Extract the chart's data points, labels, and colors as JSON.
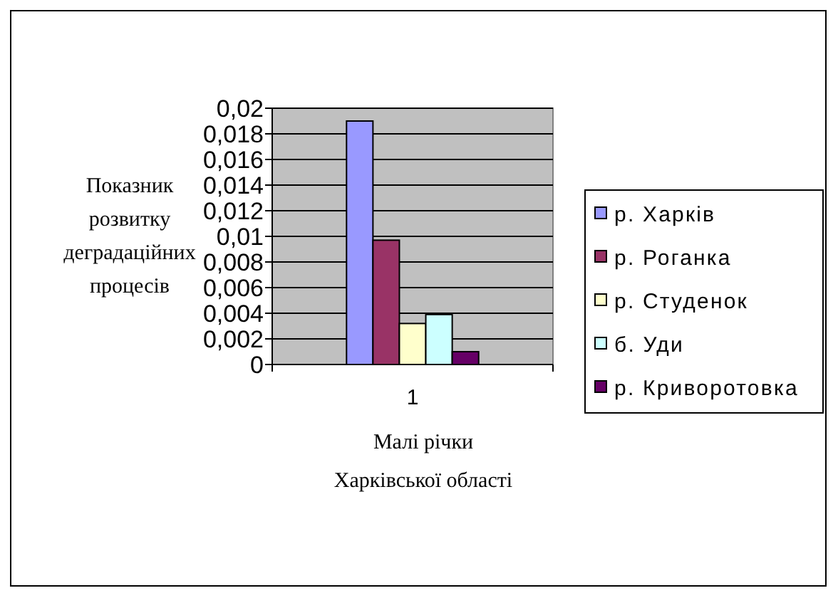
{
  "chart_data": {
    "type": "bar",
    "categories": [
      "1"
    ],
    "series": [
      {
        "name": "р. Харків",
        "color": "#9999ff",
        "values": [
          0.019
        ]
      },
      {
        "name": "р. Роганка",
        "color": "#993366",
        "values": [
          0.0097
        ]
      },
      {
        "name": "р. Студенок",
        "color": "#ffffcc",
        "values": [
          0.0032
        ]
      },
      {
        "name": "б. Уди",
        "color": "#ccffff",
        "values": [
          0.0039
        ]
      },
      {
        "name": "р. Криворотовка",
        "color": "#660066",
        "values": [
          0.001
        ]
      }
    ],
    "ylabel": "Показник розвитку деградаційних процесів",
    "xlabel": "Малі річки Харківської області",
    "ylim": [
      0,
      0.02
    ],
    "yticks": [
      0,
      {
        "value": 0.002,
        "label": "0,002"
      },
      {
        "value": 0.004,
        "label": "0,004"
      },
      {
        "value": 0.006,
        "label": "0,006"
      },
      {
        "value": 0.008,
        "label": "0,008"
      },
      {
        "value": 0.01,
        "label": "0,01"
      },
      {
        "value": 0.012,
        "label": "0,012"
      },
      {
        "value": 0.014,
        "label": "0,014"
      },
      {
        "value": 0.016,
        "label": "0,016"
      },
      {
        "value": 0.018,
        "label": "0,018"
      },
      {
        "value": 0.02,
        "label": "0,02"
      }
    ],
    "grid": true,
    "legend": "right"
  }
}
